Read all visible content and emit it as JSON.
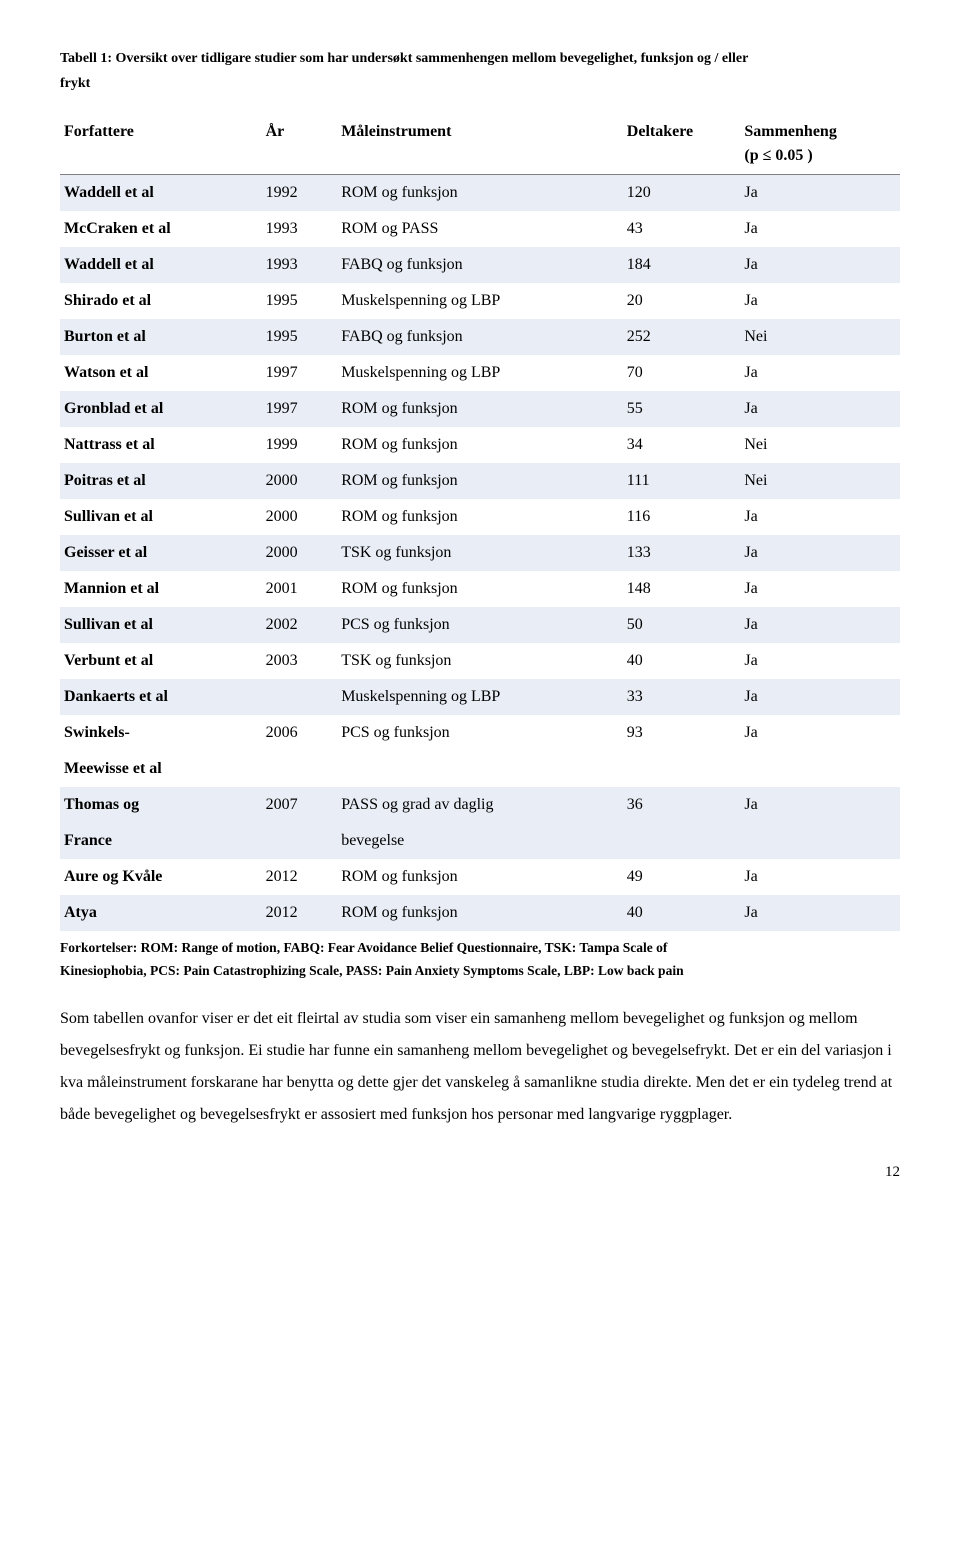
{
  "caption_line1": "Tabell 1: Oversikt over tidligare studier som har undersøkt sammenhengen mellom bevegelighet, funksjon og / eller",
  "caption_line2": "frykt",
  "headers": {
    "forfattere": "Forfattere",
    "ar": "År",
    "instrument": "Måleinstrument",
    "deltakere": "Deltakere",
    "sammenheng_l1": "Sammenheng",
    "sammenheng_l2": "(p ≤ 0.05 )"
  },
  "rows": [
    {
      "forfattere": "Waddell et al",
      "ar": "1992",
      "instrument": "ROM og funksjon",
      "deltakere": "120",
      "sammenheng": "Ja",
      "striped": true
    },
    {
      "forfattere": "McCraken et al",
      "ar": "1993",
      "instrument": "ROM og PASS",
      "deltakere": "43",
      "sammenheng": "Ja",
      "striped": false
    },
    {
      "forfattere": "Waddell et al",
      "ar": "1993",
      "instrument": "FABQ og funksjon",
      "deltakere": "184",
      "sammenheng": "Ja",
      "striped": true
    },
    {
      "forfattere": "Shirado et al",
      "ar": "1995",
      "instrument": "Muskelspenning og LBP",
      "deltakere": "20",
      "sammenheng": "Ja",
      "striped": false
    },
    {
      "forfattere": "Burton et al",
      "ar": "1995",
      "instrument": "FABQ og funksjon",
      "deltakere": "252",
      "sammenheng": "Nei",
      "striped": true
    },
    {
      "forfattere": "Watson et al",
      "ar": "1997",
      "instrument": "Muskelspenning og LBP",
      "deltakere": "70",
      "sammenheng": "Ja",
      "striped": false
    },
    {
      "forfattere": "Gronblad et al",
      "ar": "1997",
      "instrument": "ROM og funksjon",
      "deltakere": "55",
      "sammenheng": "Ja",
      "striped": true
    },
    {
      "forfattere": "Nattrass et al",
      "ar": "1999",
      "instrument": "ROM og funksjon",
      "deltakere": "34",
      "sammenheng": "Nei",
      "striped": false
    },
    {
      "forfattere": "Poitras et al",
      "ar": "2000",
      "instrument": "ROM og funksjon",
      "deltakere": "111",
      "sammenheng": "Nei",
      "striped": true
    },
    {
      "forfattere": "Sullivan et al",
      "ar": "2000",
      "instrument": "ROM og funksjon",
      "deltakere": "116",
      "sammenheng": "Ja",
      "striped": false
    },
    {
      "forfattere": "Geisser et al",
      "ar": "2000",
      "instrument": "TSK og funksjon",
      "deltakere": "133",
      "sammenheng": "Ja",
      "striped": true
    },
    {
      "forfattere": "Mannion et al",
      "ar": "2001",
      "instrument": "ROM og funksjon",
      "deltakere": "148",
      "sammenheng": "Ja",
      "striped": false
    },
    {
      "forfattere": "Sullivan et al",
      "ar": "2002",
      "instrument": "PCS og funksjon",
      "deltakere": "50",
      "sammenheng": "Ja",
      "striped": true
    },
    {
      "forfattere": "Verbunt et al",
      "ar": "2003",
      "instrument": "TSK og funksjon",
      "deltakere": "40",
      "sammenheng": "Ja",
      "striped": false
    },
    {
      "forfattere": "Dankaerts et al",
      "ar": "",
      "instrument": "Muskelspenning og LBP",
      "deltakere": "33",
      "sammenheng": "Ja",
      "striped": true
    },
    {
      "forfattere": "Swinkels-",
      "ar": "2006",
      "instrument": "PCS og funksjon",
      "deltakere": "93",
      "sammenheng": "Ja",
      "striped": false
    },
    {
      "forfattere": "Meewisse et al",
      "ar": "",
      "instrument": "",
      "deltakere": "",
      "sammenheng": "",
      "striped": false
    },
    {
      "forfattere": "Thomas og",
      "ar": "2007",
      "instrument": "PASS og grad av daglig",
      "deltakere": "36",
      "sammenheng": "Ja",
      "striped": true
    },
    {
      "forfattere": "France",
      "ar": "",
      "instrument": "bevegelse",
      "deltakere": "",
      "sammenheng": "",
      "striped": true
    },
    {
      "forfattere": "Aure og Kvåle",
      "ar": "2012",
      "instrument": "ROM og  funksjon",
      "deltakere": "49",
      "sammenheng": "Ja",
      "striped": false
    },
    {
      "forfattere": "Atya",
      "ar": "2012",
      "instrument": "ROM og funksjon",
      "deltakere": "40",
      "sammenheng": "Ja",
      "striped": true
    }
  ],
  "footnote_l1": "Forkortelser: ROM: Range of motion, FABQ: Fear Avoidance Belief Questionnaire, TSK: Tampa Scale of",
  "footnote_l2": "Kinesiophobia, PCS: Pain Catastrophizing Scale, PASS: Pain Anxiety Symptoms Scale, LBP: Low back pain",
  "body": "Som tabellen ovanfor viser er det eit fleirtal av studia som viser ein samanheng mellom bevegelighet og funksjon og mellom bevegelsesfrykt og funksjon. Ei studie har funne ein samanheng mellom bevegelighet og bevegelsefrykt. Det er ein del variasjon i kva måleinstrument forskarane har benytta og dette gjer det vanskeleg å samanlikne studia direkte. Men det er ein tydeleg trend at både bevegelighet og bevegelsesfrykt er assosiert med funksjon hos personar med langvarige ryggplager.",
  "pagenum": "12",
  "colors": {
    "stripe": "#e9eef6",
    "border": "#808080",
    "text": "#000000",
    "bg": "#ffffff"
  }
}
